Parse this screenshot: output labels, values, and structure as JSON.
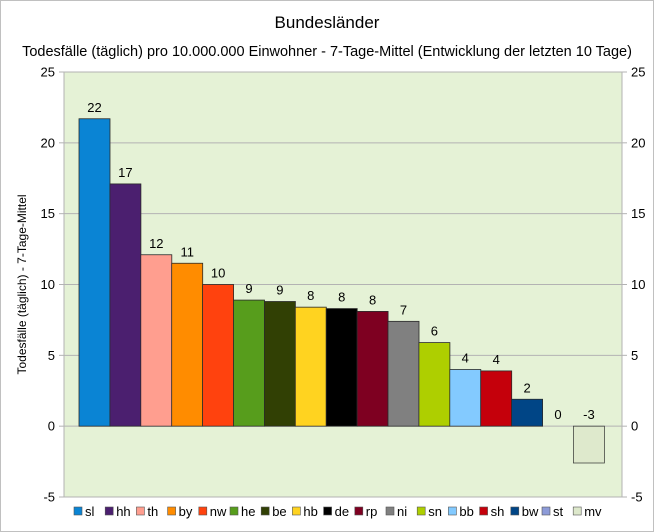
{
  "chart_data": {
    "type": "bar",
    "title": "Bundesländer",
    "subtitle": "Todesfälle (täglich) pro 10.000.000 Einwohner - 7-Tage-Mittel (Entwicklung der letzten 10 Tage)",
    "ylabel": "Todesfälle (täglich) - 7-Tage-Mittel",
    "xlabel": "",
    "ylim": [
      -5,
      25
    ],
    "yticks": [
      -5,
      0,
      5,
      10,
      15,
      20,
      25
    ],
    "grid": true,
    "legend": "bottom",
    "plot_background": "#e5f2d6",
    "categories": [
      "sl",
      "hh",
      "th",
      "by",
      "nw",
      "he",
      "be",
      "hb",
      "de",
      "rp",
      "ni",
      "sn",
      "bb",
      "sh",
      "bw",
      "st",
      "mv"
    ],
    "values": [
      21.7,
      17.1,
      12.1,
      11.5,
      10.0,
      8.9,
      8.8,
      8.4,
      8.3,
      8.1,
      7.4,
      5.9,
      4.0,
      3.9,
      1.9,
      0.0,
      -2.6
    ],
    "data_labels": [
      "22",
      "17",
      "12",
      "11",
      "10",
      "9",
      "9",
      "8",
      "8",
      "8",
      "7",
      "6",
      "4",
      "4",
      "2",
      "0",
      "-3"
    ],
    "colors": [
      "#0a84d4",
      "#4b1f6f",
      "#ff9e8f",
      "#ff8c00",
      "#ff420e",
      "#579d1c",
      "#314004",
      "#ffd320",
      "#000000",
      "#7e0021",
      "#808080",
      "#aecf00",
      "#83caff",
      "#c5000b",
      "#004586",
      "#8d9bd8",
      "#dde8cb"
    ]
  }
}
